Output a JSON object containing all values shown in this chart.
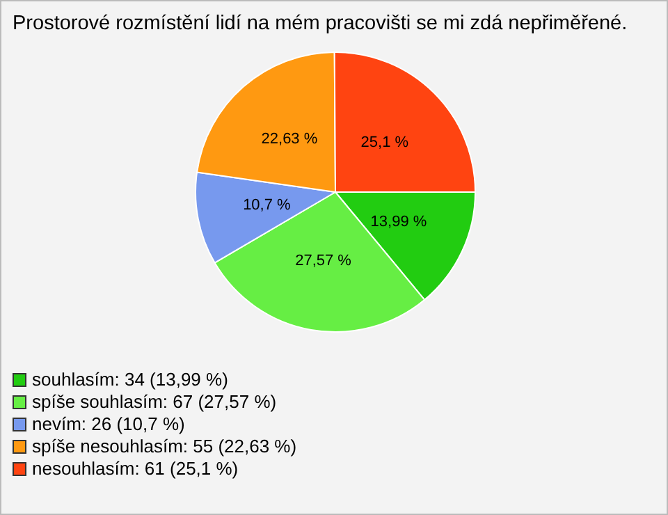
{
  "chart_data": {
    "type": "pie",
    "title": "Prostorové rozmístění lidí na mém pracovišti se mi zdá nepřiměřené.",
    "categories": [
      "souhlasím: 34 (13,99 %)",
      "spíše souhlasím: 67 (27,57 %)",
      "nevím: 26 (10,7 %)",
      "spíše nesouhlasím: 55 (22,63 %)",
      "nesouhlasím: 61 (25,1 %)"
    ],
    "values": [
      13.99,
      27.57,
      10.7,
      22.63,
      25.1
    ],
    "value_labels": [
      "13,99 %",
      "27,57 %",
      "10,7 %",
      "22,63 %",
      "25,1 %"
    ],
    "colors": [
      "#22cc11",
      "#66ee44",
      "#7799ee",
      "#ff9911",
      "#ff4411"
    ],
    "legend": "bottom left"
  }
}
